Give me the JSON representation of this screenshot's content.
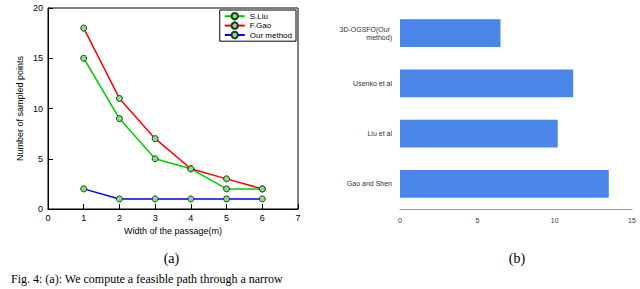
{
  "caption": "Fig. 4: (a): We compute a feasible path through a narrow",
  "chart_data": [
    {
      "type": "line",
      "subtitle": "(a)",
      "x_label": "Width of the passage(m)",
      "y_label": "Number of sampled points",
      "x": [
        1,
        2,
        3,
        4,
        5,
        6
      ],
      "series": [
        {
          "name": "S.Liu",
          "color": "#00cc00",
          "marker": "o",
          "values": [
            15,
            9,
            5,
            4,
            2,
            2
          ]
        },
        {
          "name": "F.Gao",
          "color": "#ff0000",
          "marker": "o",
          "values": [
            18,
            11,
            7,
            4,
            3,
            2
          ]
        },
        {
          "name": "Our method",
          "color": "#0000ff",
          "marker": "o",
          "values": [
            2,
            1,
            1,
            1,
            1,
            1
          ]
        }
      ],
      "xlim": [
        0,
        7
      ],
      "xticks": [
        0,
        1,
        2,
        3,
        4,
        5,
        6,
        7
      ],
      "ylim": [
        0,
        20
      ],
      "yticks": [
        0,
        5,
        10,
        15,
        20
      ],
      "grid": false,
      "legend": "top-right"
    },
    {
      "type": "bar",
      "subtitle": "(b)",
      "orientation": "horizontal",
      "categories": [
        "Gao and Shen",
        "Liu et al",
        "Usenko et al",
        "3D-OGSFO(Our method)"
      ],
      "values": [
        13.5,
        10.2,
        11.2,
        6.5
      ],
      "color": "#4a86e8",
      "xlim": [
        0,
        15
      ],
      "xticks": [
        0,
        5,
        10,
        15
      ],
      "grid": false
    }
  ]
}
